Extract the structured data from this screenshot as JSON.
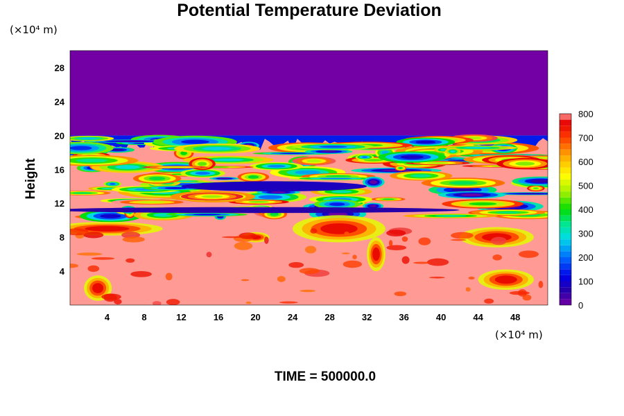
{
  "chart_data": {
    "type": "heatmap",
    "title": "Potential Temperature Deviation",
    "ylabel": "Height",
    "xlabel": "",
    "x_unit": "(×10⁴ m)",
    "y_unit": "(×10⁴ m)",
    "x_ticks": [
      4,
      8,
      12,
      16,
      20,
      24,
      28,
      32,
      36,
      40,
      44,
      48
    ],
    "y_ticks": [
      4,
      8,
      12,
      16,
      20,
      24,
      28
    ],
    "xlim": [
      0,
      51.5
    ],
    "ylim": [
      0,
      30
    ],
    "colorbar": {
      "ticks": [
        0,
        100,
        200,
        300,
        400,
        500,
        600,
        700,
        800
      ],
      "range": [
        0,
        800
      ]
    },
    "colors": {
      "background_low": "#ff9a94",
      "top_uniform": "#7200a4"
    },
    "regions": {
      "upper_uniform_above_height": 20,
      "upper_uniform_value": 0,
      "lower_dominant_value": 800,
      "turbulent_band_heights": [
        10,
        20
      ]
    },
    "annotation": "TIME = 500000.0"
  }
}
